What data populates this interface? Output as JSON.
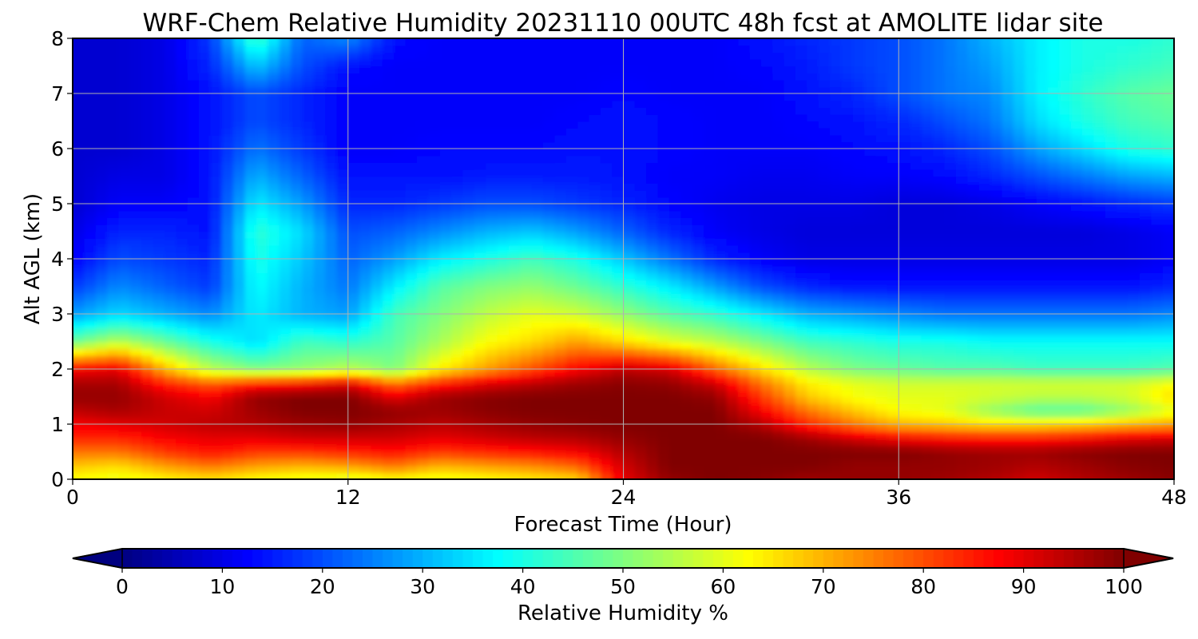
{
  "chart_data": {
    "type": "heatmap",
    "title": "WRF-Chem Relative Humidity 20231110 00UTC 48h fcst at AMOLITE lidar site",
    "xlabel": "Forecast Time (Hour)",
    "ylabel": "Alt AGL (km)",
    "xlim": [
      0,
      48
    ],
    "ylim": [
      0,
      8
    ],
    "xticks": [
      "0",
      "12",
      "24",
      "36",
      "48"
    ],
    "yticks": [
      "0",
      "1",
      "2",
      "3",
      "4",
      "5",
      "6",
      "7",
      "8"
    ],
    "grid": true,
    "colorbar": {
      "label": "Relative Humidity %",
      "ticks": [
        "0",
        "10",
        "20",
        "30",
        "40",
        "50",
        "60",
        "70",
        "80",
        "90",
        "100"
      ],
      "range": [
        0,
        100
      ],
      "extend": "both",
      "colormap": "jet"
    },
    "x": [
      0,
      2,
      4,
      6,
      8,
      10,
      12,
      14,
      16,
      18,
      20,
      22,
      24,
      26,
      28,
      30,
      32,
      34,
      36,
      38,
      40,
      42,
      44,
      46,
      48
    ],
    "y": [
      0,
      0.25,
      0.5,
      0.75,
      1,
      1.25,
      1.5,
      1.75,
      2,
      2.5,
      3,
      3.5,
      4,
      4.5,
      5,
      5.5,
      6,
      6.5,
      7,
      7.5,
      8
    ],
    "values": [
      [
        62,
        60,
        63,
        65,
        62,
        60,
        58,
        62,
        60,
        62,
        64,
        66,
        90,
        98,
        100,
        99,
        97,
        98,
        98,
        97,
        95,
        92,
        95,
        97,
        99
      ],
      [
        68,
        66,
        72,
        76,
        72,
        70,
        72,
        76,
        70,
        72,
        74,
        78,
        92,
        100,
        100,
        100,
        100,
        98,
        98,
        98,
        97,
        95,
        97,
        99,
        100
      ],
      [
        76,
        76,
        82,
        86,
        82,
        82,
        84,
        86,
        82,
        84,
        86,
        88,
        95,
        100,
        100,
        100,
        100,
        100,
        100,
        98,
        97,
        97,
        99,
        100,
        100
      ],
      [
        84,
        84,
        88,
        90,
        90,
        92,
        92,
        92,
        90,
        92,
        94,
        95,
        98,
        100,
        100,
        100,
        97,
        92,
        88,
        86,
        85,
        85,
        87,
        90,
        92
      ],
      [
        88,
        90,
        92,
        94,
        95,
        97,
        98,
        96,
        94,
        96,
        98,
        99,
        100,
        100,
        100,
        95,
        84,
        76,
        70,
        68,
        66,
        66,
        68,
        70,
        72
      ],
      [
        94,
        96,
        93,
        92,
        97,
        100,
        100,
        98,
        97,
        99,
        100,
        100,
        100,
        100,
        100,
        88,
        76,
        68,
        62,
        60,
        52,
        46,
        46,
        52,
        60
      ],
      [
        98,
        98,
        92,
        88,
        98,
        100,
        100,
        90,
        97,
        99,
        100,
        100,
        100,
        100,
        98,
        82,
        68,
        62,
        60,
        60,
        58,
        56,
        56,
        58,
        66
      ],
      [
        96,
        96,
        84,
        78,
        84,
        86,
        90,
        76,
        84,
        90,
        94,
        97,
        99,
        98,
        92,
        76,
        64,
        60,
        58,
        58,
        58,
        58,
        58,
        58,
        62
      ],
      [
        88,
        90,
        70,
        56,
        50,
        52,
        56,
        50,
        64,
        72,
        80,
        88,
        94,
        92,
        78,
        66,
        56,
        50,
        48,
        46,
        46,
        44,
        44,
        44,
        46
      ],
      [
        48,
        56,
        48,
        40,
        34,
        44,
        42,
        46,
        54,
        62,
        66,
        72,
        66,
        60,
        56,
        50,
        44,
        42,
        40,
        40,
        38,
        38,
        38,
        38,
        38
      ],
      [
        28,
        34,
        30,
        26,
        36,
        30,
        28,
        44,
        50,
        56,
        60,
        58,
        52,
        46,
        42,
        36,
        30,
        28,
        26,
        24,
        24,
        24,
        24,
        24,
        26
      ],
      [
        18,
        26,
        22,
        18,
        38,
        30,
        24,
        36,
        46,
        50,
        52,
        48,
        42,
        36,
        28,
        20,
        16,
        14,
        14,
        14,
        14,
        14,
        14,
        14,
        16
      ],
      [
        12,
        20,
        18,
        16,
        40,
        32,
        22,
        28,
        36,
        40,
        44,
        40,
        32,
        24,
        16,
        12,
        10,
        10,
        10,
        10,
        10,
        10,
        10,
        10,
        12
      ],
      [
        10,
        16,
        16,
        14,
        42,
        34,
        20,
        22,
        26,
        30,
        32,
        28,
        22,
        16,
        12,
        10,
        9,
        9,
        9,
        9,
        9,
        9,
        9,
        10,
        12
      ],
      [
        8,
        12,
        12,
        14,
        36,
        28,
        16,
        16,
        18,
        20,
        20,
        18,
        16,
        13,
        11,
        10,
        10,
        10,
        9,
        9,
        10,
        12,
        14,
        16,
        18
      ],
      [
        8,
        10,
        10,
        14,
        30,
        22,
        14,
        14,
        14,
        15,
        15,
        15,
        14,
        12,
        12,
        11,
        11,
        12,
        12,
        13,
        16,
        20,
        24,
        28,
        30
      ],
      [
        8,
        8,
        10,
        14,
        24,
        18,
        12,
        12,
        13,
        13,
        13,
        14,
        14,
        13,
        12,
        12,
        12,
        13,
        14,
        16,
        20,
        28,
        34,
        40,
        42
      ],
      [
        8,
        8,
        10,
        14,
        20,
        16,
        12,
        12,
        12,
        12,
        12,
        13,
        14,
        13,
        12,
        12,
        13,
        14,
        16,
        20,
        24,
        34,
        40,
        44,
        46
      ],
      [
        8,
        8,
        10,
        14,
        20,
        16,
        12,
        12,
        12,
        12,
        12,
        12,
        13,
        12,
        12,
        12,
        14,
        16,
        20,
        24,
        26,
        36,
        42,
        46,
        48
      ],
      [
        8,
        8,
        10,
        16,
        32,
        20,
        14,
        12,
        12,
        12,
        12,
        12,
        12,
        12,
        12,
        13,
        15,
        18,
        20,
        24,
        28,
        36,
        40,
        42,
        44
      ],
      [
        8,
        8,
        10,
        18,
        44,
        22,
        26,
        14,
        12,
        12,
        12,
        12,
        12,
        12,
        12,
        14,
        16,
        18,
        20,
        24,
        30,
        36,
        40,
        40,
        42
      ]
    ]
  }
}
